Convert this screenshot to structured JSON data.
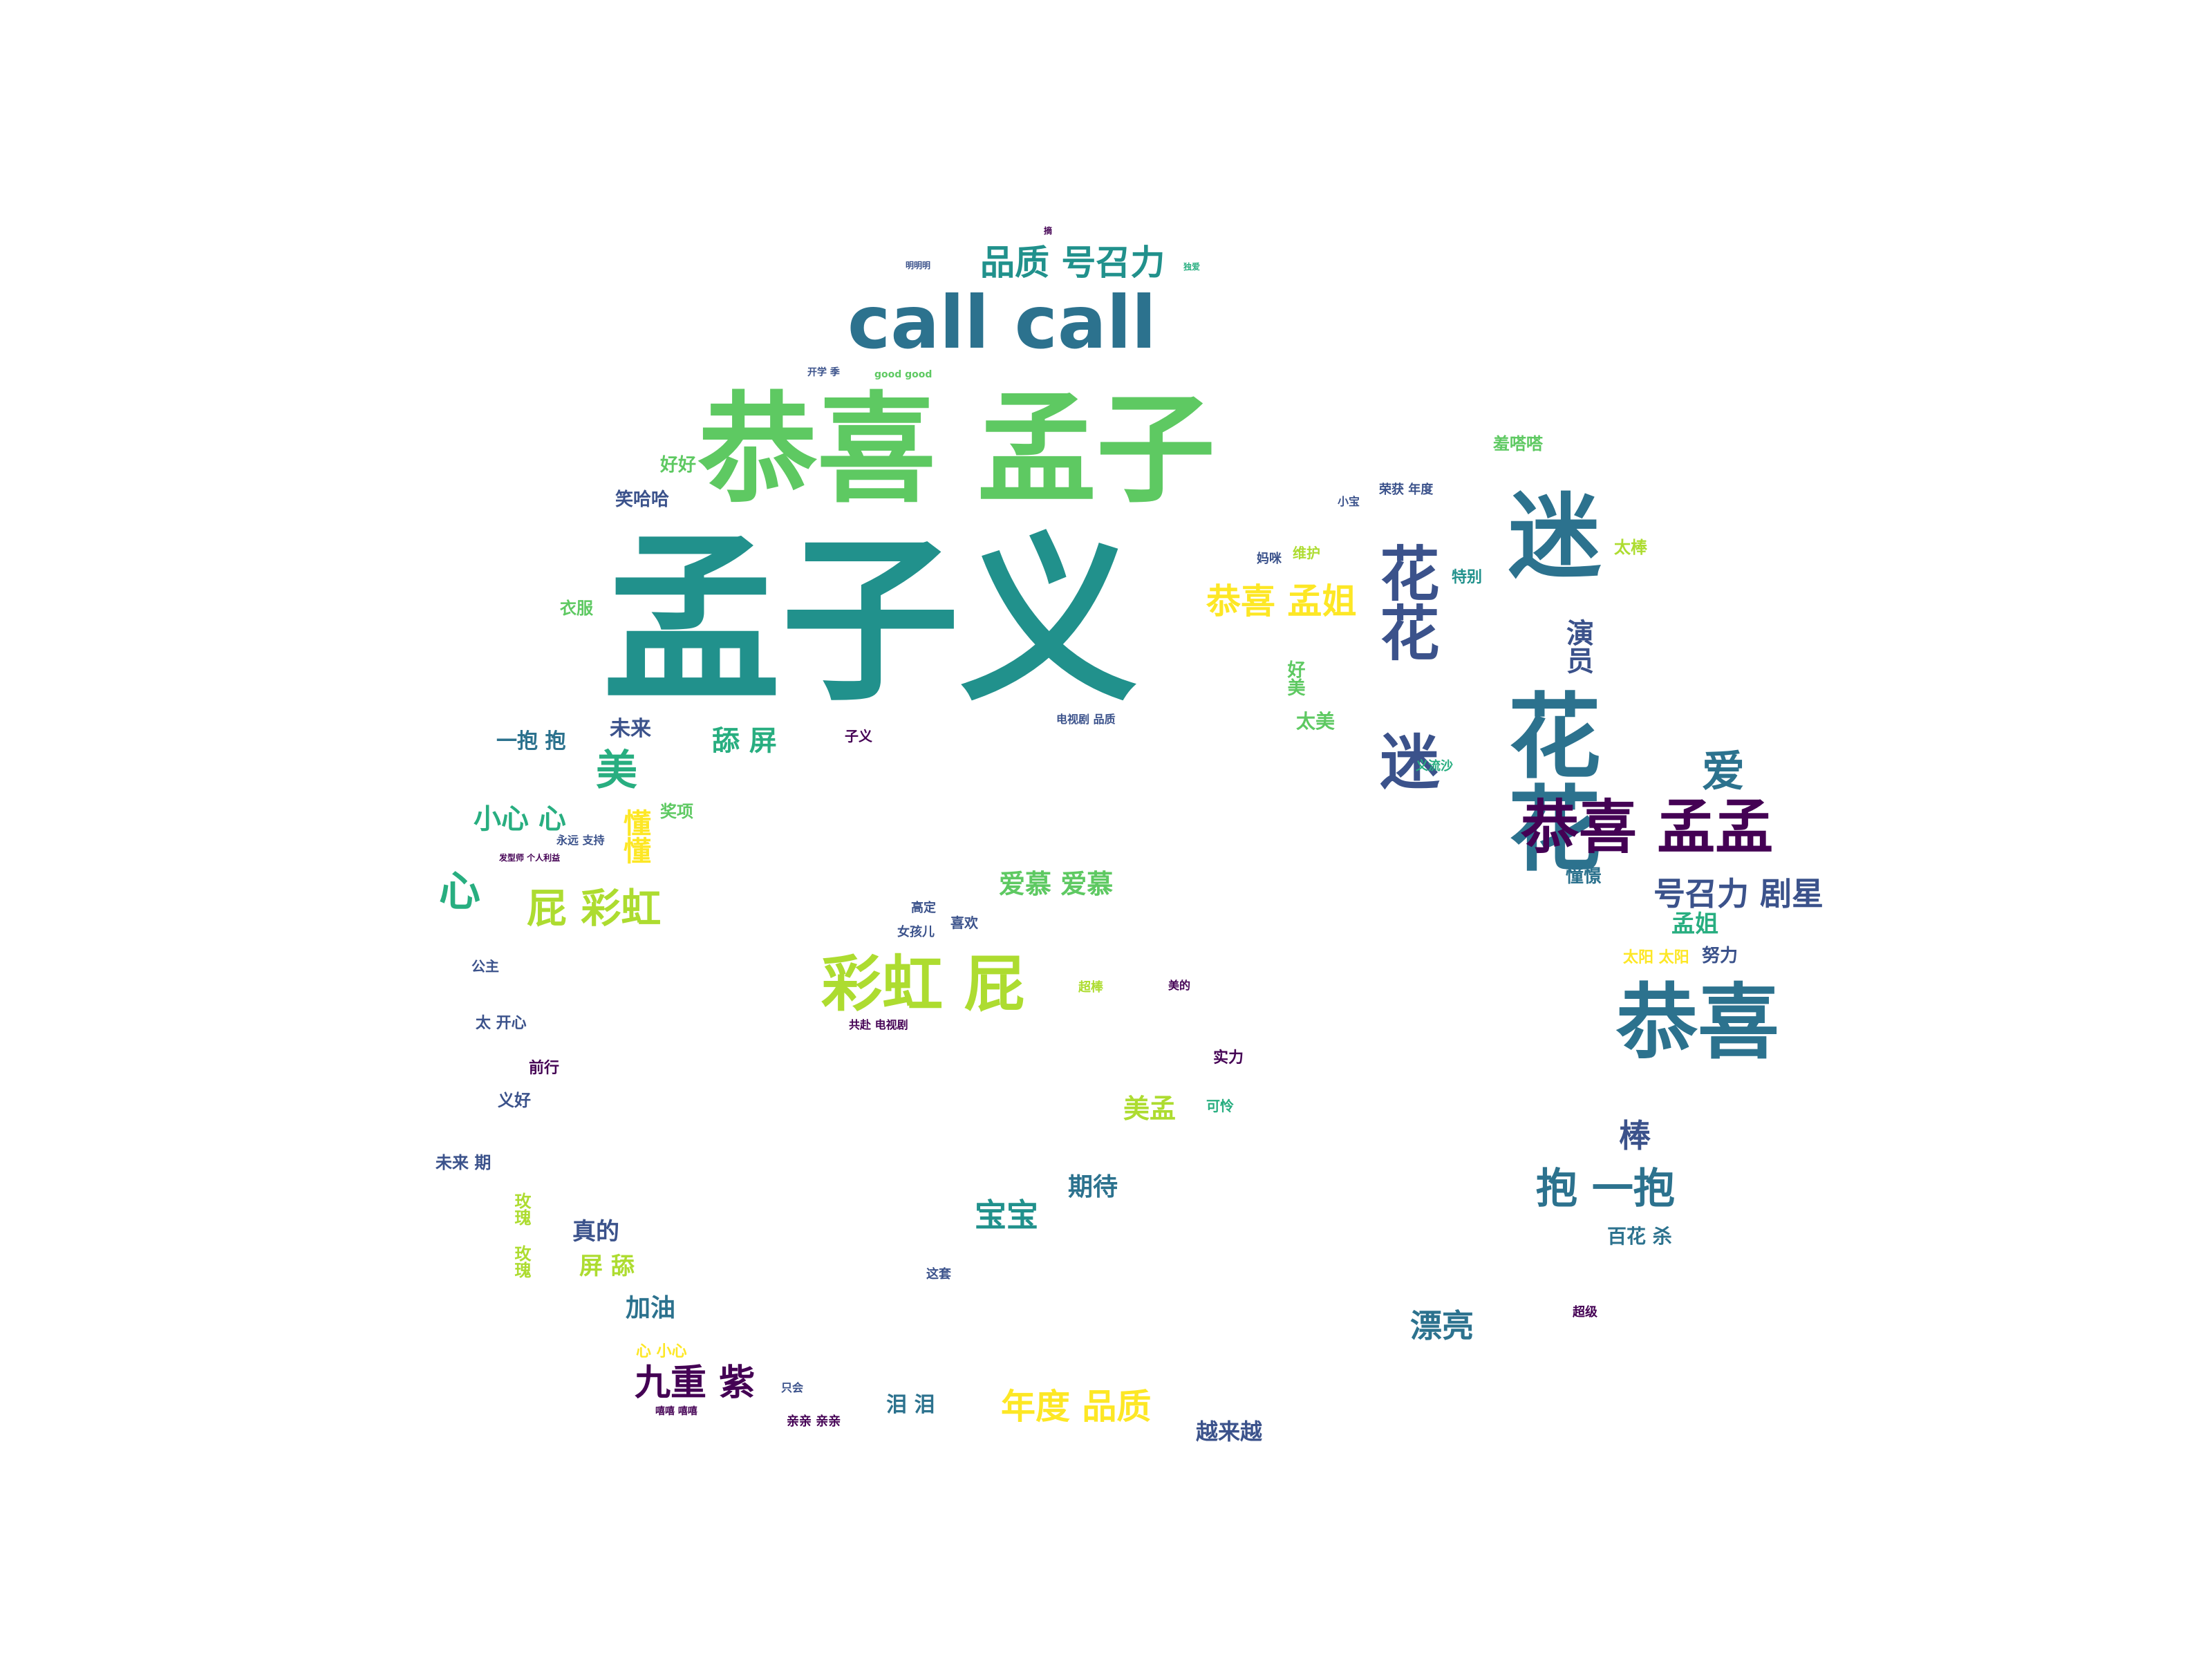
{
  "palette": {
    "deep_purple": "#440154",
    "indigo": "#3b528b",
    "teal_blue": "#2c728e",
    "teal": "#21918c",
    "green_teal": "#28ae80",
    "green": "#5ec962",
    "lime": "#addc30",
    "yellow": "#fde725"
  },
  "words": [
    {
      "text": "孟子义",
      "color": "#21918c"
    },
    {
      "text": "恭喜 孟子",
      "color": "#5ec962"
    },
    {
      "text": "call call",
      "color": "#2c728e"
    },
    {
      "text": "迷 花花",
      "color": "#2c728e"
    },
    {
      "text": "恭喜",
      "color": "#2c728e"
    },
    {
      "text": "恭喜 孟孟",
      "color": "#440154"
    },
    {
      "text": "花花 迷",
      "color": "#3b528b"
    },
    {
      "text": "彩虹 屁",
      "color": "#addc30"
    },
    {
      "text": "品质 号召力",
      "color": "#21918c"
    },
    {
      "text": "恭喜 孟姐",
      "color": "#fde725"
    },
    {
      "text": "屁 彩虹",
      "color": "#addc30"
    },
    {
      "text": "号召力 剧星",
      "color": "#3b528b"
    },
    {
      "text": "抱 一抱",
      "color": "#2c728e"
    },
    {
      "text": "九重 紫",
      "color": "#440154"
    },
    {
      "text": "年度 品质",
      "color": "#fde725"
    },
    {
      "text": "爱慕 爱慕",
      "color": "#5ec962"
    },
    {
      "text": "宝宝",
      "color": "#21918c"
    },
    {
      "text": "漂亮",
      "color": "#2c728e"
    },
    {
      "text": "心",
      "color": "#28ae80"
    },
    {
      "text": "美",
      "color": "#28ae80"
    },
    {
      "text": "小心 心",
      "color": "#28ae80"
    },
    {
      "text": "舔 屏",
      "color": "#28ae80"
    },
    {
      "text": "爱",
      "color": "#2c728e"
    },
    {
      "text": "孟姐",
      "color": "#28ae80"
    },
    {
      "text": "演员",
      "color": "#3b528b"
    },
    {
      "text": "期待",
      "color": "#2c728e"
    },
    {
      "text": "美孟",
      "color": "#addc30"
    },
    {
      "text": "加油",
      "color": "#2c728e"
    },
    {
      "text": "真的",
      "color": "#3b528b"
    },
    {
      "text": "屏 舔",
      "color": "#addc30"
    },
    {
      "text": "一抱 抱",
      "color": "#2c728e"
    },
    {
      "text": "未来",
      "color": "#3b528b"
    },
    {
      "text": "棒",
      "color": "#3b528b"
    },
    {
      "text": "越来越",
      "color": "#3b528b"
    },
    {
      "text": "泪 泪",
      "color": "#2c728e"
    },
    {
      "text": "百花 杀",
      "color": "#2c728e"
    },
    {
      "text": "笑哈哈",
      "color": "#3b528b"
    },
    {
      "text": "好好",
      "color": "#5ec962"
    },
    {
      "text": "衣服",
      "color": "#5ec962"
    },
    {
      "text": "太美",
      "color": "#5ec962"
    },
    {
      "text": "好美",
      "color": "#5ec962"
    },
    {
      "text": "羞嗒嗒",
      "color": "#5ec962"
    },
    {
      "text": "太棒",
      "color": "#addc30"
    },
    {
      "text": "特别",
      "color": "#21918c"
    },
    {
      "text": "懂懂",
      "color": "#fde725"
    },
    {
      "text": "奖项",
      "color": "#5ec962"
    },
    {
      "text": "憧憬",
      "color": "#2c728e"
    },
    {
      "text": "太阳 太阳",
      "color": "#fde725"
    },
    {
      "text": "努力",
      "color": "#3b528b"
    },
    {
      "text": "实力",
      "color": "#440154"
    },
    {
      "text": "可怜",
      "color": "#28ae80"
    },
    {
      "text": "未来 期",
      "color": "#3b528b"
    },
    {
      "text": "前行",
      "color": "#440154"
    },
    {
      "text": "义好",
      "color": "#3b528b"
    },
    {
      "text": "太 开心",
      "color": "#3b528b"
    },
    {
      "text": "公主",
      "color": "#3b528b"
    },
    {
      "text": "心 小心",
      "color": "#fde725"
    },
    {
      "text": "荣获 年度",
      "color": "#3b528b"
    },
    {
      "text": "小宝",
      "color": "#3b528b"
    },
    {
      "text": "维护",
      "color": "#addc30"
    },
    {
      "text": "妈咪",
      "color": "#3b528b"
    },
    {
      "text": "子义",
      "color": "#440154"
    },
    {
      "text": "高定",
      "color": "#3b528b"
    },
    {
      "text": "喜欢",
      "color": "#3b528b"
    },
    {
      "text": "女孩儿",
      "color": "#3b528b"
    },
    {
      "text": "超级",
      "color": "#440154"
    },
    {
      "text": "这套",
      "color": "#3b528b"
    },
    {
      "text": "义流沙",
      "color": "#28ae80"
    },
    {
      "text": "开学 季",
      "color": "#3b528b"
    },
    {
      "text": "good good",
      "color": "#5ec962"
    },
    {
      "text": "共赴 电视剧",
      "color": "#440154"
    },
    {
      "text": "电视剧 品质",
      "color": "#3b528b"
    },
    {
      "text": "超棒",
      "color": "#addc30"
    },
    {
      "text": "美的",
      "color": "#440154"
    },
    {
      "text": "永远 支持",
      "color": "#3b528b"
    },
    {
      "text": "发型师 个人利益",
      "color": "#440154"
    },
    {
      "text": "嘻嘻 嘻嘻",
      "color": "#440154"
    },
    {
      "text": "只会",
      "color": "#3b528b"
    },
    {
      "text": "亲亲 亲亲",
      "color": "#440154"
    },
    {
      "text": "玫瑰 玫瑰",
      "color": "#addc30"
    },
    {
      "text": "明明明",
      "color": "#3b528b"
    },
    {
      "text": "摘",
      "color": "#440154"
    },
    {
      "text": "独爱",
      "color": "#28ae80"
    }
  ]
}
